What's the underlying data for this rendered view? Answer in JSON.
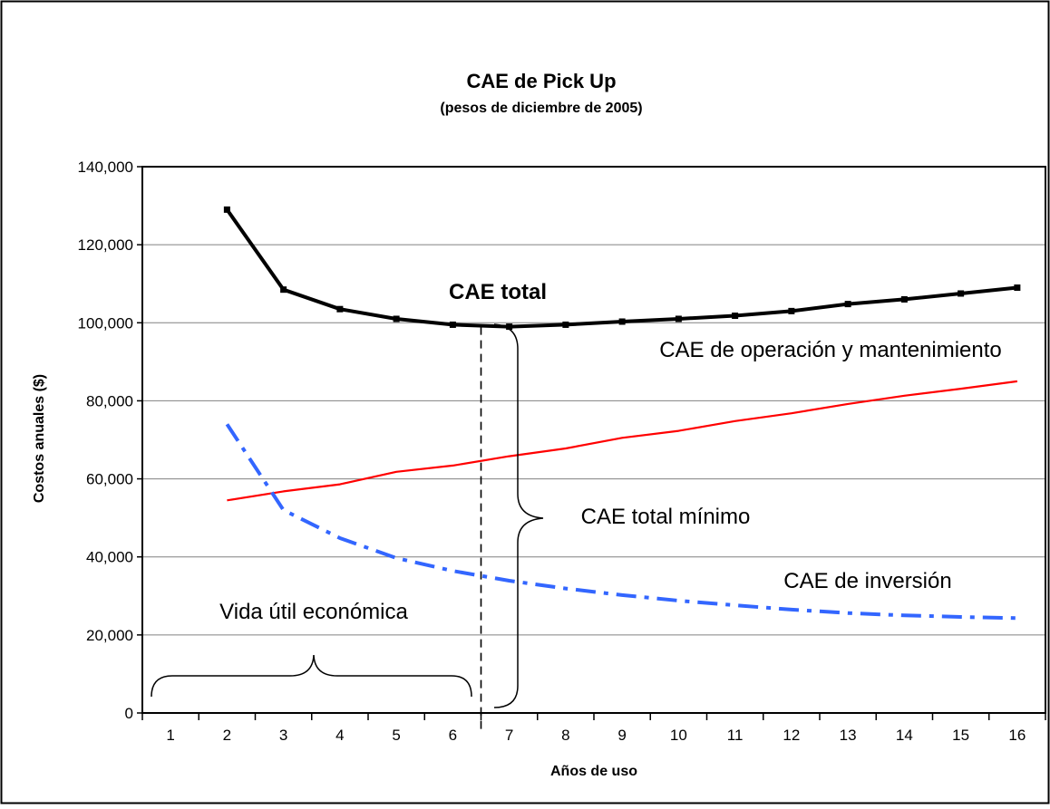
{
  "chart_data": {
    "type": "line",
    "title": "CAE de Pick Up",
    "subtitle": "(pesos de diciembre de 2005)",
    "xlabel": "Años de uso",
    "ylabel": "Costos anuales ($)",
    "ylim": [
      0,
      140000
    ],
    "x_ticks": [
      "1",
      "2",
      "3",
      "4",
      "5",
      "6",
      "7",
      "8",
      "9",
      "10",
      "11",
      "12",
      "13",
      "14",
      "15",
      "16"
    ],
    "y_ticks": [
      "0",
      "20,000",
      "40,000",
      "60,000",
      "80,000",
      "100,000",
      "120,000",
      "140,000"
    ],
    "grid": "horizontal",
    "series": [
      {
        "key": "total",
        "color": "#000000",
        "x": [
          2,
          3,
          4,
          5,
          6,
          7,
          8,
          9,
          10,
          11,
          12,
          13,
          14,
          15,
          16
        ],
        "values": [
          129000,
          108500,
          103500,
          101000,
          99500,
          99000,
          99500,
          100300,
          101000,
          101800,
          103000,
          104800,
          106000,
          107500,
          109000
        ]
      },
      {
        "key": "operacion",
        "color": "#ff0000",
        "x": [
          2,
          3,
          4,
          5,
          6,
          7,
          8,
          9,
          10,
          11,
          12,
          13,
          14,
          15,
          16
        ],
        "values": [
          54500,
          56800,
          58600,
          61800,
          63400,
          65800,
          67800,
          70500,
          72300,
          74800,
          76800,
          79200,
          81300,
          83100,
          85000
        ]
      },
      {
        "key": "inversion",
        "color": "#3366ff",
        "x": [
          2,
          3,
          4,
          5,
          6,
          7,
          8,
          9,
          10,
          11,
          12,
          13,
          14,
          15,
          16
        ],
        "values": [
          74000,
          52000,
          44800,
          39700,
          36400,
          33900,
          31900,
          30200,
          28800,
          27600,
          26500,
          25600,
          25000,
          24600,
          24300
        ]
      }
    ],
    "annotations": {
      "total": "CAE total",
      "operacion": "CAE de operación y mantenimiento",
      "minimo": "CAE total mínimo",
      "inversion": "CAE de inversión",
      "vida_util": "Vida útil económica"
    },
    "optimum_x": 6.5
  }
}
